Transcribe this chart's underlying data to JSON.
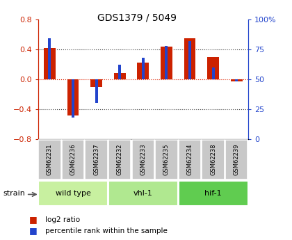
{
  "title": "GDS1379 / 5049",
  "samples": [
    "GSM62231",
    "GSM62236",
    "GSM62237",
    "GSM62232",
    "GSM62233",
    "GSM62235",
    "GSM62234",
    "GSM62238",
    "GSM62239"
  ],
  "log2_ratio": [
    0.42,
    -0.48,
    -0.1,
    0.08,
    0.22,
    0.43,
    0.55,
    0.3,
    -0.03
  ],
  "percentile_rank": [
    84,
    18,
    30,
    62,
    68,
    78,
    82,
    60,
    48
  ],
  "ylim_left": [
    -0.8,
    0.8
  ],
  "ylim_right": [
    0,
    100
  ],
  "groups": [
    {
      "label": "wild type",
      "start": 0,
      "end": 3,
      "color": "#c8f0a0"
    },
    {
      "label": "vhl-1",
      "start": 3,
      "end": 6,
      "color": "#b0e890"
    },
    {
      "label": "hif-1",
      "start": 6,
      "end": 9,
      "color": "#60cc50"
    }
  ],
  "group_row_color": "#c8c8c8",
  "background_color": "#ffffff",
  "bar_color_red": "#cc2200",
  "bar_color_blue": "#2244cc",
  "zero_line_color": "#dd2200",
  "dotted_line_color": "#444444",
  "left_axis_color": "#cc2200",
  "right_axis_color": "#2244cc",
  "red_bar_width": 0.5,
  "blue_bar_width": 0.12
}
